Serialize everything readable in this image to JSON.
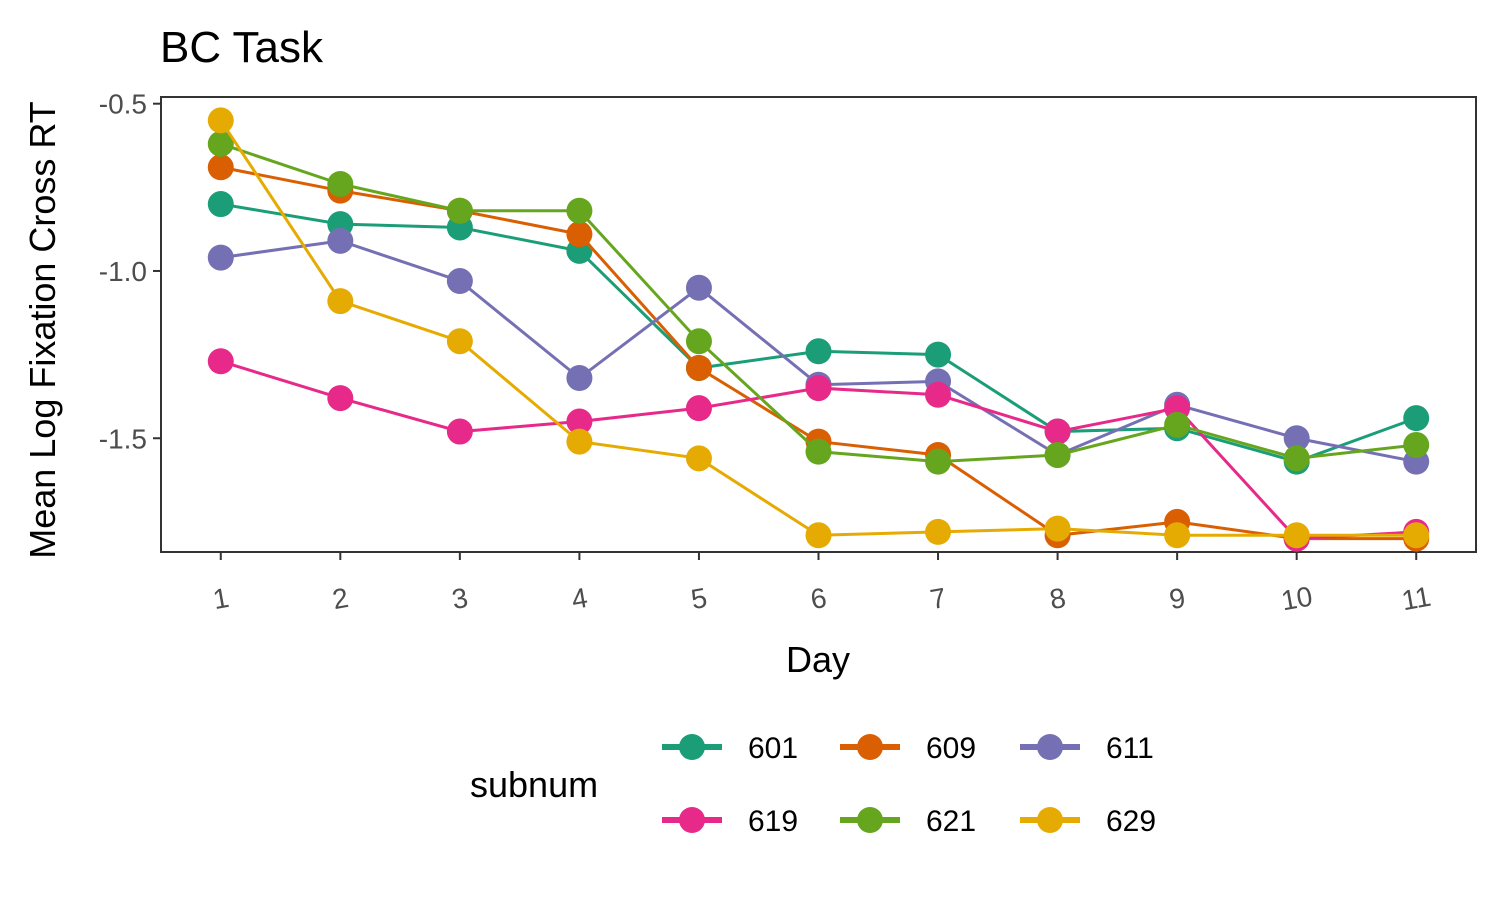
{
  "chart_data": {
    "type": "line",
    "title": "BC Task",
    "xlabel": "Day",
    "ylabel": "Mean Log Fixation Cross RT",
    "x": [
      1,
      2,
      3,
      4,
      5,
      6,
      7,
      8,
      9,
      10,
      11
    ],
    "x_tick_labels": [
      "1",
      "2",
      "3",
      "4",
      "5",
      "6",
      "7",
      "8",
      "9",
      "10",
      "11"
    ],
    "y_ticks": [
      -0.5,
      -1.0,
      -1.5
    ],
    "y_tick_labels": [
      "-0.5",
      "-1.0",
      "-1.5"
    ],
    "ylim": [
      -1.84,
      -0.48
    ],
    "xlim": [
      0.5,
      11.5
    ],
    "grid": false,
    "legend": {
      "title": "subnum",
      "position": "bottom",
      "columns": 3
    },
    "series": [
      {
        "name": "601",
        "color": "#1b9e77",
        "values": [
          -0.8,
          -0.86,
          -0.87,
          -0.94,
          -1.29,
          -1.24,
          -1.25,
          -1.48,
          -1.47,
          -1.57,
          -1.44
        ]
      },
      {
        "name": "609",
        "color": "#d95f02",
        "values": [
          -0.69,
          -0.76,
          -0.82,
          -0.89,
          -1.29,
          -1.51,
          -1.55,
          -1.79,
          -1.75,
          -1.8,
          -1.8
        ]
      },
      {
        "name": "611",
        "color": "#7570b3",
        "values": [
          -0.96,
          -0.91,
          -1.03,
          -1.32,
          -1.05,
          -1.34,
          -1.33,
          -1.55,
          -1.4,
          -1.5,
          -1.57
        ]
      },
      {
        "name": "619",
        "color": "#e7298a",
        "values": [
          -1.27,
          -1.38,
          -1.48,
          -1.45,
          -1.41,
          -1.35,
          -1.37,
          -1.48,
          -1.41,
          -1.8,
          -1.78
        ]
      },
      {
        "name": "621",
        "color": "#66a61e",
        "values": [
          -0.62,
          -0.74,
          -0.82,
          -0.82,
          -1.21,
          -1.54,
          -1.57,
          -1.55,
          -1.46,
          -1.56,
          -1.52
        ]
      },
      {
        "name": "629",
        "color": "#e6ab02",
        "values": [
          -0.55,
          -1.09,
          -1.21,
          -1.51,
          -1.56,
          -1.79,
          -1.78,
          -1.77,
          -1.79,
          -1.79,
          -1.79
        ]
      }
    ]
  }
}
